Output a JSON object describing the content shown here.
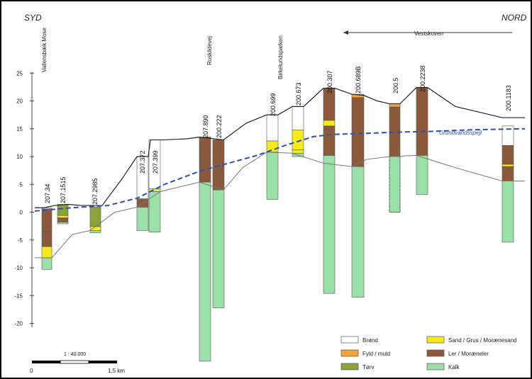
{
  "header": {
    "south": "SYD",
    "north": "NORD"
  },
  "area_label": "Vestskoven",
  "axis": {
    "ticks": [
      25,
      20,
      15,
      10,
      5,
      0,
      -5,
      -10,
      -15,
      -20
    ]
  },
  "places": [
    "Vallensbæk Mose",
    "Roskildevej",
    "Birkelundsparken"
  ],
  "boreholes": [
    "207.34",
    "207.1515",
    "207.2985",
    "207.372",
    "207.399",
    "207.890",
    "200.222",
    "200.699",
    "200.673",
    "200.307",
    "200.689B",
    "200.5",
    "200.2238",
    "200.1183"
  ],
  "groundwater_label": "Grundvandsspejl",
  "scale": {
    "ratio": "1 : 40.000",
    "start": "0",
    "end": "1,5 km"
  },
  "legend": [
    {
      "label": "Brønd",
      "color": "#ffffff"
    },
    {
      "label": "Sand / Grus / Morænesand",
      "color": "#f5ea1e"
    },
    {
      "label": "Fyld / muld",
      "color": "#f4a23a"
    },
    {
      "label": "Ler / Moræneler",
      "color": "#8b5a3c"
    },
    {
      "label": "Tørv",
      "color": "#8ca33a"
    },
    {
      "label": "Kalk",
      "color": "#9be0a8"
    }
  ],
  "colors": {
    "groundwater": "#2c4fb5",
    "terrain": "#222222",
    "limestone_surface": "#777777"
  }
}
